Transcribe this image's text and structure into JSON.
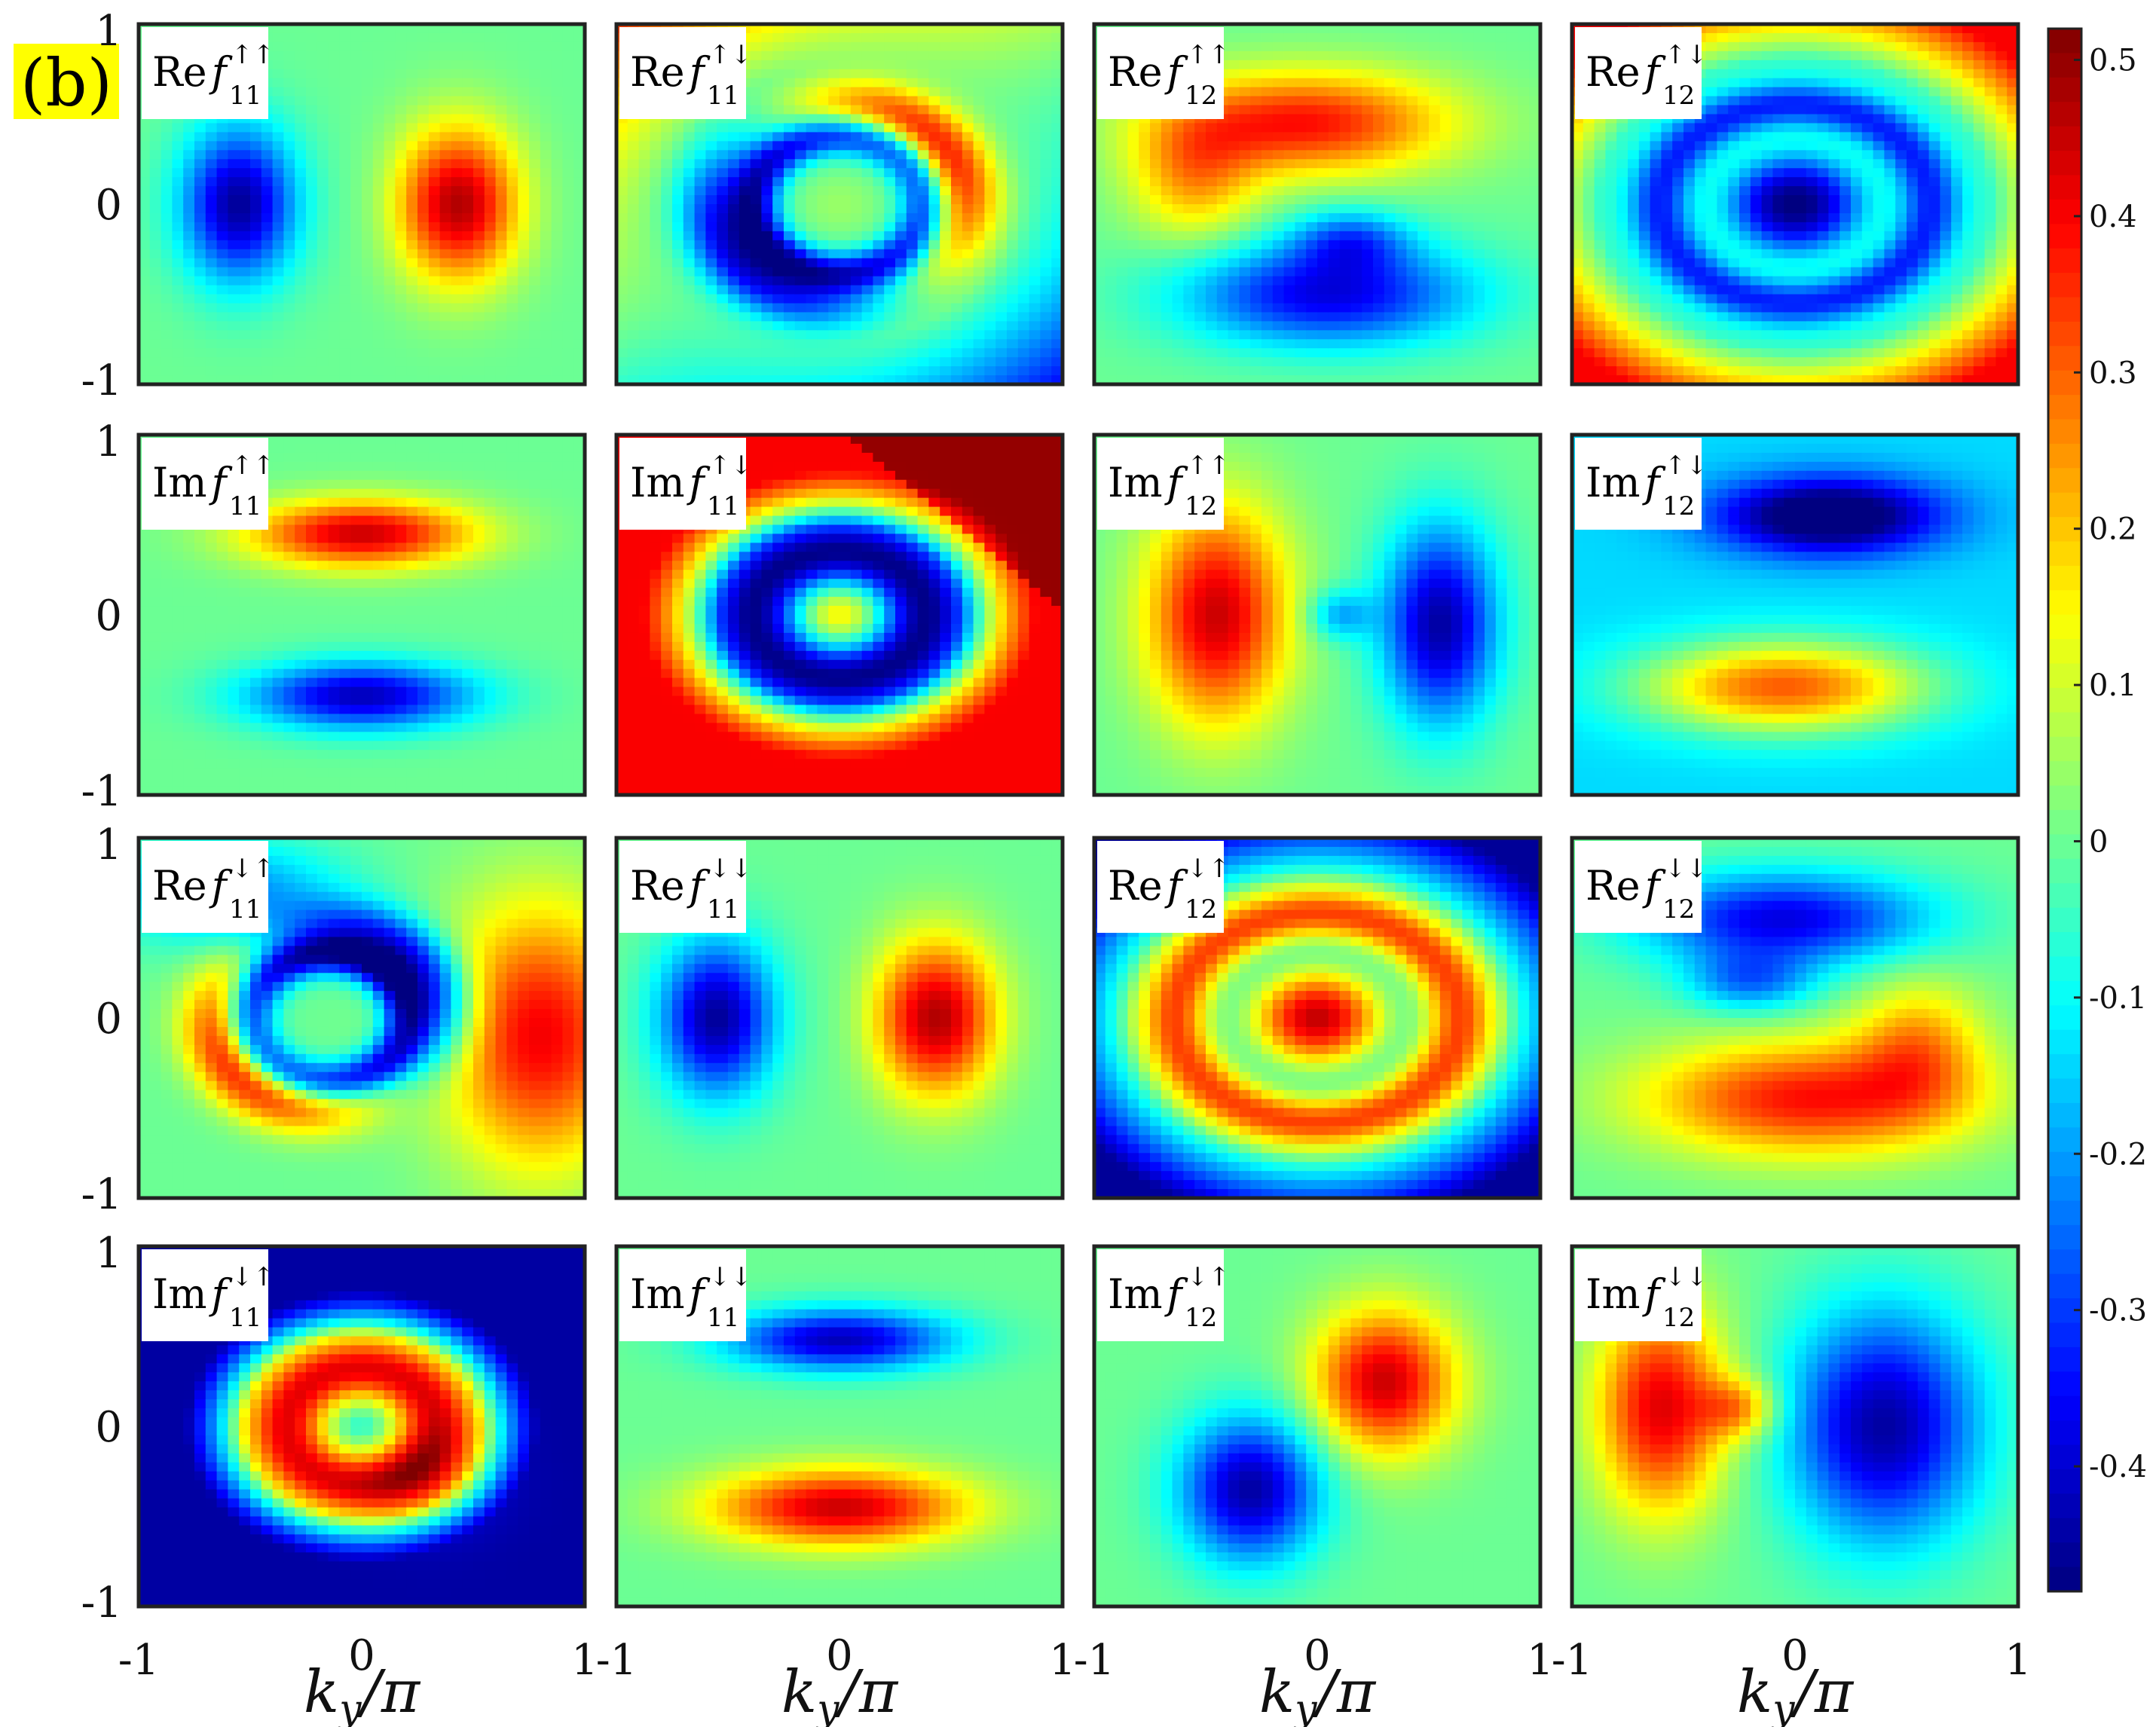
{
  "panel_tag": "(b)",
  "chart_data": {
    "type": "heatmap",
    "grid": "off",
    "colormap": "jet",
    "colorbar": {
      "min": -0.48,
      "max": 0.52,
      "ticks": [
        0.5,
        0.4,
        0.3,
        0.2,
        0.1,
        0,
        -0.1,
        -0.2,
        -0.3,
        -0.4
      ],
      "tick_labels": [
        "0.5",
        "0.4",
        "0.3",
        "0.2",
        "0.1",
        "0",
        "-0.1",
        "-0.2",
        "-0.3",
        "-0.4"
      ],
      "placement": "right"
    },
    "xlabel": "k_y/π",
    "xlabel_parts": {
      "k": "k",
      "sub": "y",
      "rest": "/π"
    },
    "xlim": [
      -1,
      1
    ],
    "ylim": [
      -1,
      1
    ],
    "x_tick_labels": [
      "-1",
      "0",
      "1"
    ],
    "y_tick_labels": [
      "1",
      "0",
      "-1"
    ],
    "panels": [
      {
        "part": "Re",
        "spins": "↑↑",
        "sub": "11",
        "pattern": "dipole_x",
        "amp": 0.48
      },
      {
        "part": "Re",
        "spins": "↑↓",
        "sub": "11",
        "pattern": "spiral_a",
        "amp": 0.45
      },
      {
        "part": "Re",
        "spins": "↑↑",
        "sub": "12",
        "pattern": "swirl_top",
        "amp": 0.45
      },
      {
        "part": "Re",
        "spins": "↑↓",
        "sub": "12",
        "pattern": "rings_neg",
        "amp": 0.47
      },
      {
        "part": "Im",
        "spins": "↑↑",
        "sub": "11",
        "pattern": "dipole_y",
        "amp": 0.47
      },
      {
        "part": "Im",
        "spins": "↑↓",
        "sub": "11",
        "pattern": "rings_pos",
        "amp": 0.5
      },
      {
        "part": "Im",
        "spins": "↑↑",
        "sub": "12",
        "pattern": "crescent_lr",
        "amp": 0.47
      },
      {
        "part": "Im",
        "spins": "↑↓",
        "sub": "12",
        "pattern": "crescent_tb",
        "amp": 0.47
      },
      {
        "part": "Re",
        "spins": "↓↑",
        "sub": "11",
        "pattern": "spiral_b",
        "amp": 0.45
      },
      {
        "part": "Re",
        "spins": "↓↓",
        "sub": "11",
        "pattern": "dipole_x",
        "amp": 0.48
      },
      {
        "part": "Re",
        "spins": "↓↑",
        "sub": "12",
        "pattern": "rings_pos2",
        "amp": 0.48
      },
      {
        "part": "Re",
        "spins": "↓↓",
        "sub": "12",
        "pattern": "swirl_bottom",
        "amp": 0.45
      },
      {
        "part": "Im",
        "spins": "↓↑",
        "sub": "11",
        "pattern": "rings_pos3",
        "amp": 0.47
      },
      {
        "part": "Im",
        "spins": "↓↓",
        "sub": "11",
        "pattern": "dipole_y_neg",
        "amp": 0.47
      },
      {
        "part": "Im",
        "spins": "↓↑",
        "sub": "12",
        "pattern": "diag",
        "amp": 0.47
      },
      {
        "part": "Im",
        "spins": "↓↓",
        "sub": "12",
        "pattern": "crescent_rl",
        "amp": 0.47
      }
    ]
  }
}
